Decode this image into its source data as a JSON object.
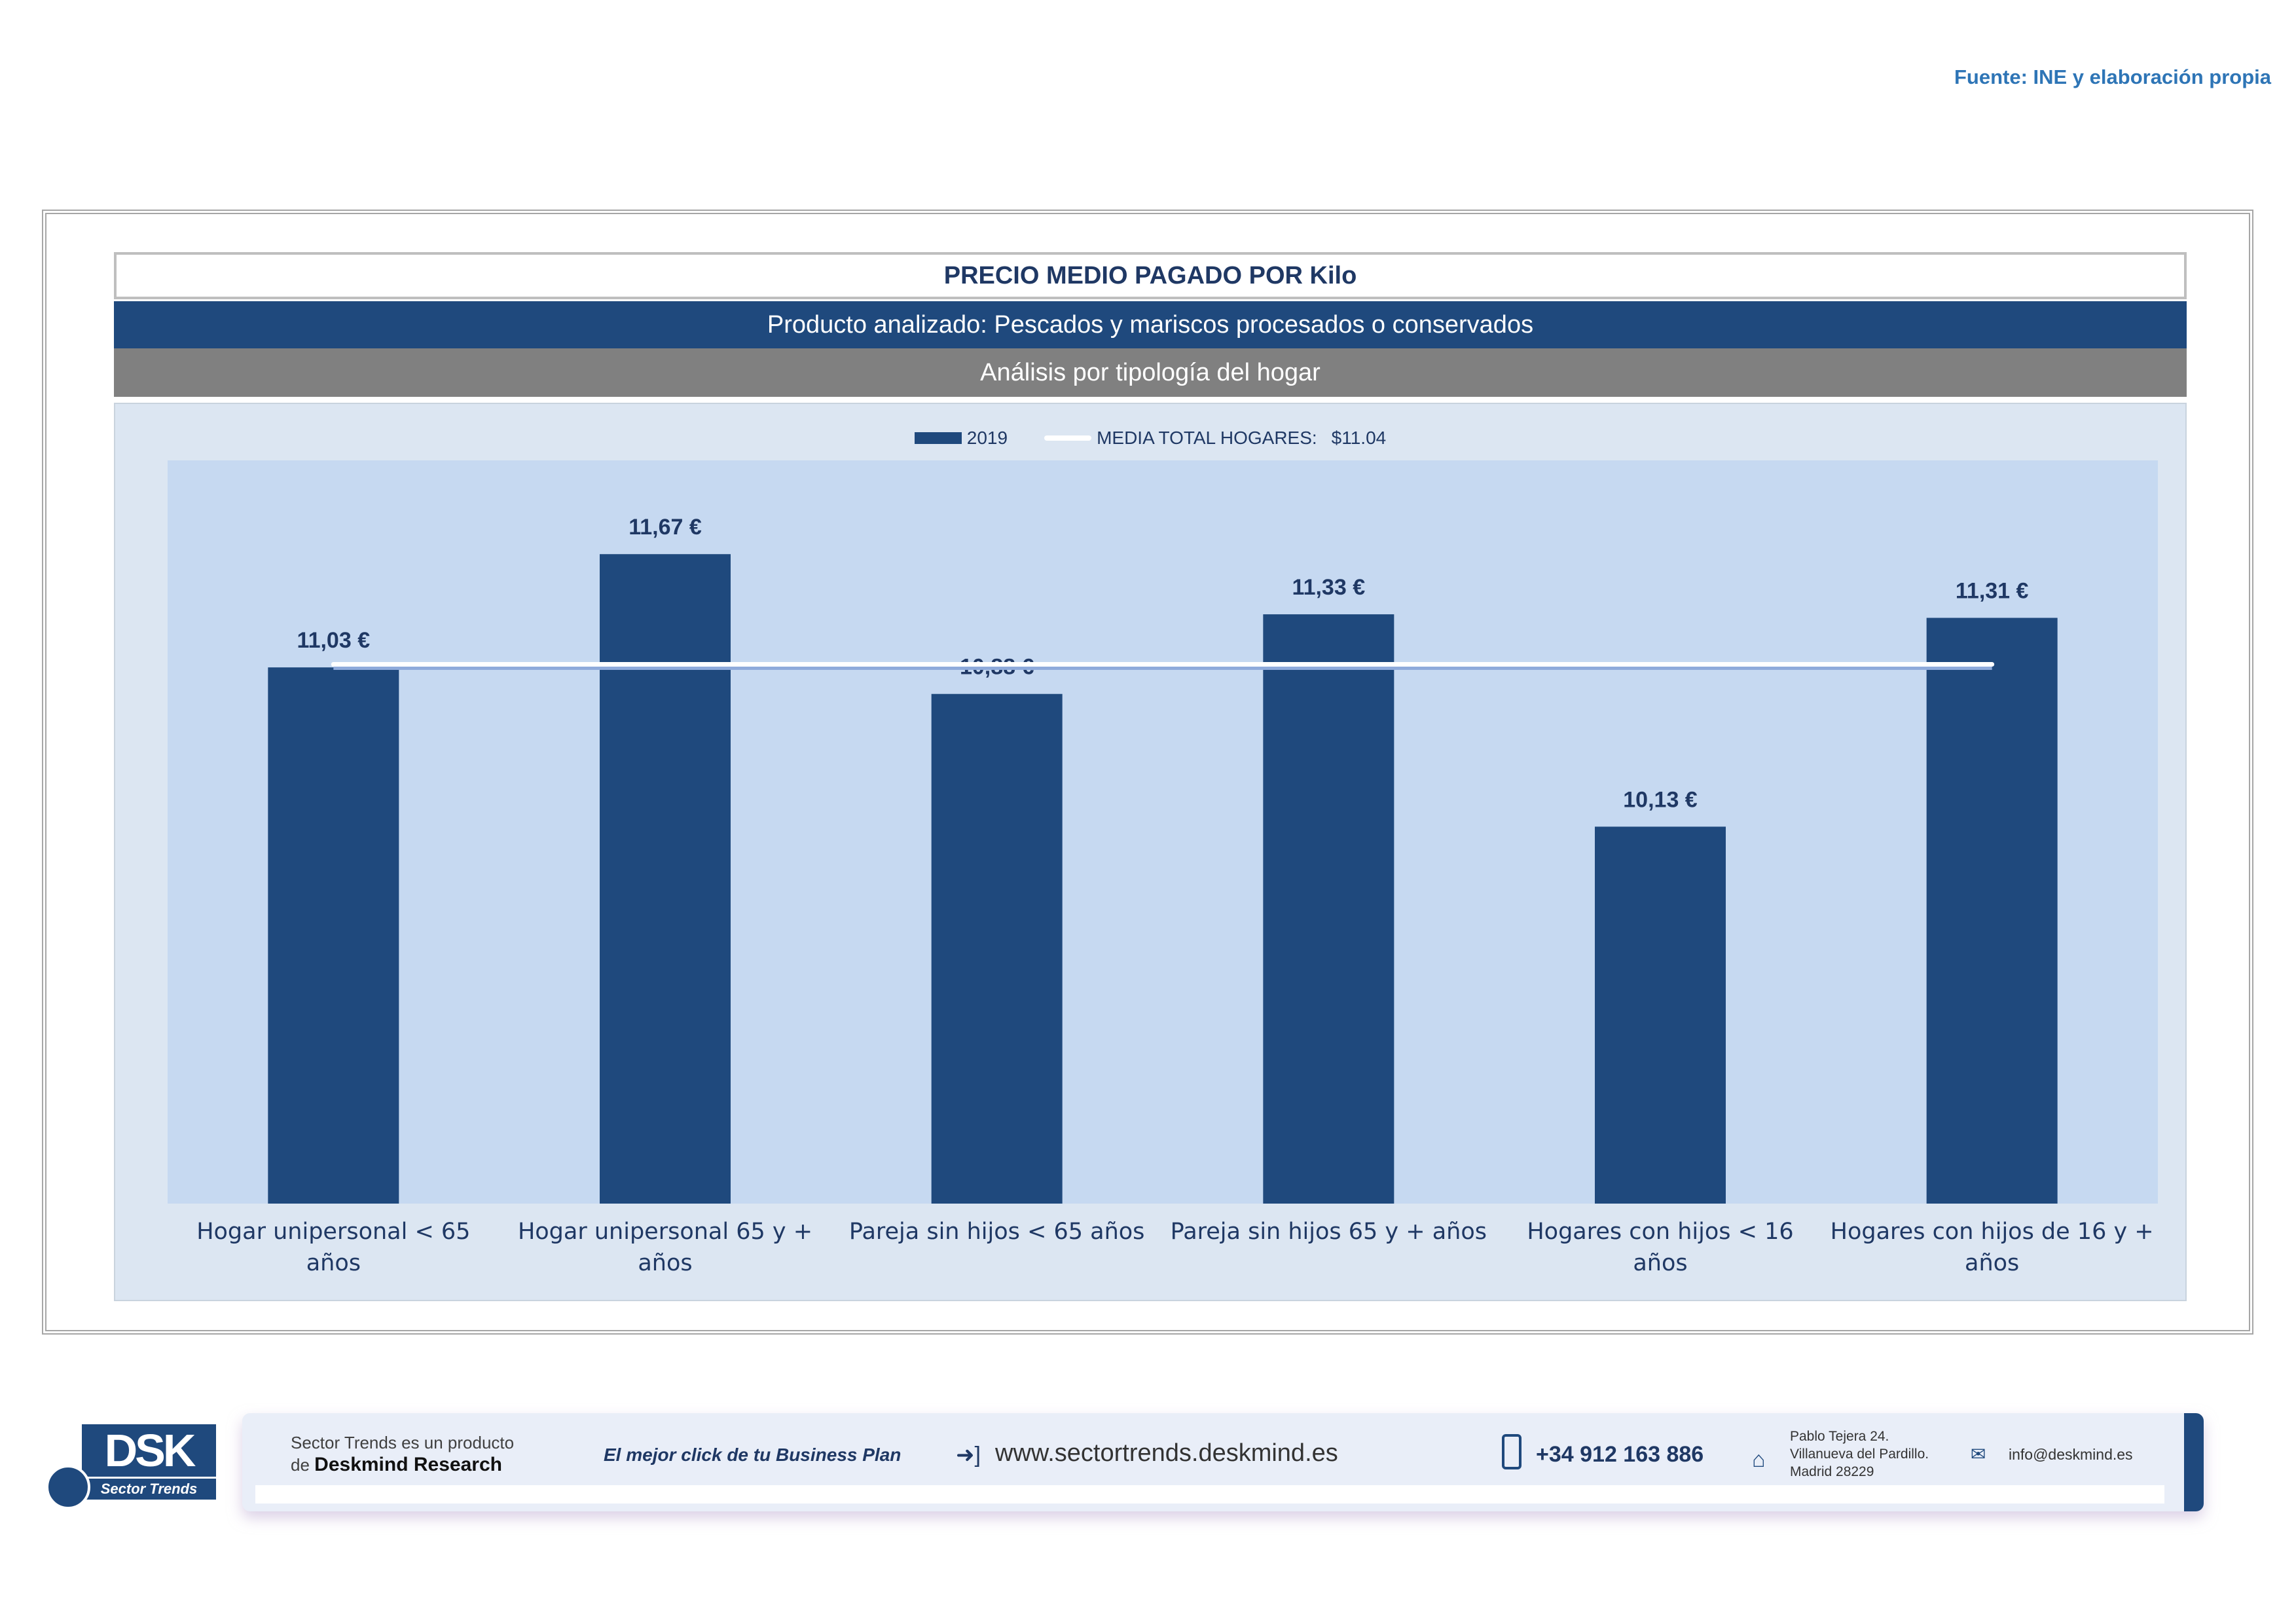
{
  "source": "Fuente: INE y elaboración propia",
  "title": "PRECIO MEDIO PAGADO POR Kilo",
  "subtitle": "Producto analizado: Pescados y mariscos procesados o conservados",
  "subtitle2": "Análisis por tipología del hogar",
  "colors": {
    "bar": "#1f497d",
    "plot_bg": "#c6d9f1",
    "outer_bg": "#dce6f2",
    "mean_line": "#ffffff",
    "label": "#1f3864"
  },
  "chart_data": {
    "type": "bar",
    "categories": [
      "Hogar unipersonal < 65 años",
      "Hogar unipersonal  65 y + años",
      "Pareja sin hijos < 65 años",
      "Pareja sin hijos 65 y + años",
      "Hogares con hijos < 16 años",
      "Hogares con hijos de 16 y + años"
    ],
    "category_lines": [
      [
        "Hogar unipersonal < 65 años"
      ],
      [
        "Hogar unipersonal  65 y +",
        "años"
      ],
      [
        "Pareja sin hijos < 65 años"
      ],
      [
        "Pareja sin hijos 65 y + años"
      ],
      [
        "Hogares con hijos < 16 años"
      ],
      [
        "Hogares con hijos de 16 y +",
        "años"
      ]
    ],
    "series": [
      {
        "name": "2019",
        "values": [
          11.03,
          11.67,
          10.88,
          11.33,
          10.13,
          11.31
        ]
      }
    ],
    "data_labels": [
      "11,03 €",
      "11,67 €",
      "10,88 €",
      "11,33 €",
      "10,13 €",
      "11,31 €"
    ],
    "reference_line": {
      "name": "MEDIA TOTAL  HOGARES:",
      "value": 11.04,
      "label": "$11.04"
    },
    "ylim": [
      8.0,
      12.2
    ],
    "title": "PRECIO MEDIO PAGADO POR Kilo",
    "xlabel": "",
    "ylabel": "",
    "legend_position": "top-center"
  },
  "footer": {
    "line1": "Sector Trends es un producto",
    "line2_prefix": "de",
    "line2_brand": "Deskmind Research",
    "slogan": "El mejor click de tu Business Plan",
    "website": "www.sectortrends.deskmind.es",
    "phone": "+34 912 163 886",
    "address": [
      "Pablo Tejera 24.",
      "Villanueva del Pardillo.",
      "Madrid 28229"
    ],
    "email": "info@deskmind.es",
    "logo_text": "DSK",
    "logo_sub": "Sector Trends"
  }
}
